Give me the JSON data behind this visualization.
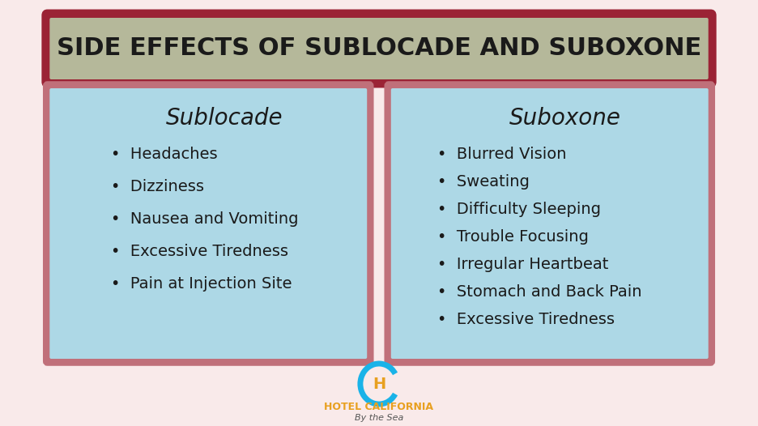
{
  "title": "SIDE EFFECTS OF SUBLOCADE AND SUBOXONE",
  "title_fontsize": 22,
  "title_bg_color": "#b5b89a",
  "title_border_color": "#9b2335",
  "bg_color": "#f9eaea",
  "panel_bg_color": "#add8e6",
  "panel_border_color": "#c0707a",
  "left_title": "Sublocade",
  "right_title": "Suboxone",
  "left_items": [
    "Headaches",
    "Dizziness",
    "Nausea and Vomiting",
    "Excessive Tiredness",
    "Pain at Injection Site"
  ],
  "right_items": [
    "Blurred Vision",
    "Sweating",
    "Difficulty Sleeping",
    "Trouble Focusing",
    "Irregular Heartbeat",
    "Stomach and Back Pain",
    "Excessive Tiredness"
  ],
  "panel_title_fontsize": 20,
  "item_fontsize": 14,
  "footer_main": "HOTEL CALIFORNIA",
  "footer_sub": "By the Sea",
  "footer_color_main": "#e8a020",
  "footer_color_sub": "#555555",
  "bullet": "•"
}
